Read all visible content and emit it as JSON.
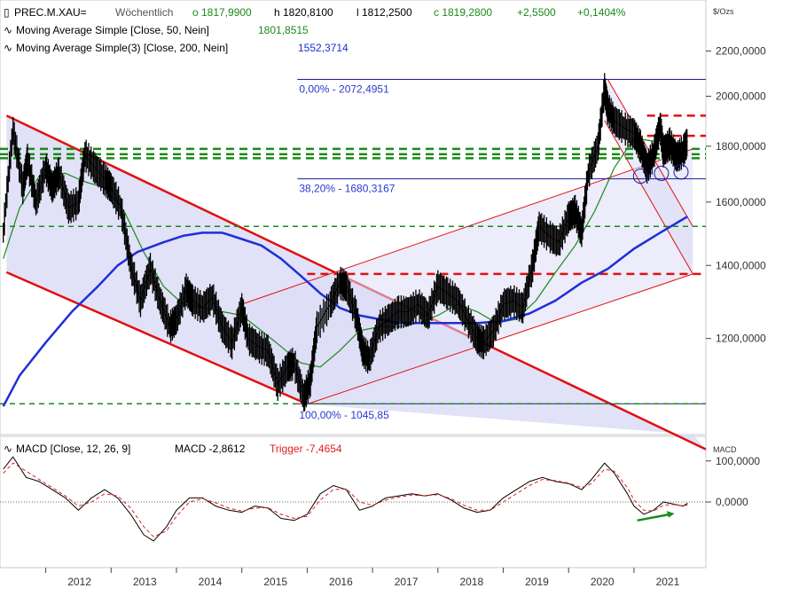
{
  "header": {
    "instrument": "PREC.M.XAU=",
    "period": "Wöchentlich",
    "open": "o 1817,9900",
    "high": "h 1820,8100",
    "low": "l 1812,2500",
    "close": "c 1819,2800",
    "change": "+2,5500",
    "change_pct": "+0,1404%",
    "ma1_label": "Moving Average Simple  [Close, 50, Nein]",
    "ma1_value": "1801,8515",
    "ma2_label": "Moving Average Simple(3)  [Close, 200, Nein]",
    "ma2_value": "1552,3714",
    "unit": "$/Ozs"
  },
  "macd_header": {
    "label": "MACD  [Close, 12, 26, 9]",
    "value_text": "MACD -2,8612",
    "trigger_text": "Trigger -7,4654",
    "unit": "MACD"
  },
  "colors": {
    "price": "#000000",
    "ma50": "#1a8a1a",
    "ma200": "#1f2fd6",
    "channel": "#e01010",
    "channel_fill": "#dcdcf6",
    "fib": "#1a1a9a",
    "support": "#1a8a1a",
    "macd_trigger": "#e02020",
    "arrow": "#1a8a1a"
  },
  "chart_data": [
    {
      "type": "line",
      "title": "PREC.M.XAU= Wöchentlich",
      "y_axis": {
        "scale": "log",
        "ylim": [
          980,
          2450
        ],
        "ticks": [
          "2200,0000",
          "2000,0000",
          "1800,0000",
          "1600,0000",
          "1400,0000",
          "1200,0000"
        ],
        "tick_values": [
          2200,
          2000,
          1800,
          1600,
          1400,
          1200
        ],
        "unit": "$/Ozs"
      },
      "x_axis": {
        "xlim": [
          2011.3,
          2022.1
        ],
        "ticks": [
          "2012",
          "2013",
          "2014",
          "2015",
          "2016",
          "2017",
          "2018",
          "2019",
          "2020",
          "2021"
        ],
        "tick_values": [
          2012,
          2013,
          2014,
          2015,
          2016,
          2017,
          2018,
          2019,
          2020,
          2021
        ]
      },
      "series": [
        {
          "name": "PREC.M.XAU=",
          "style": "price",
          "x": [
            2011.35,
            2011.5,
            2011.65,
            2011.72,
            2011.85,
            2012.0,
            2012.1,
            2012.2,
            2012.35,
            2012.5,
            2012.6,
            2012.75,
            2012.9,
            2013.0,
            2013.15,
            2013.3,
            2013.45,
            2013.6,
            2013.75,
            2013.9,
            2014.0,
            2014.15,
            2014.25,
            2014.4,
            2014.55,
            2014.7,
            2014.85,
            2015.0,
            2015.1,
            2015.25,
            2015.4,
            2015.55,
            2015.7,
            2015.8,
            2015.95,
            2016.05,
            2016.15,
            2016.35,
            2016.5,
            2016.6,
            2016.75,
            2016.85,
            2016.95,
            2017.1,
            2017.25,
            2017.4,
            2017.55,
            2017.7,
            2017.85,
            2018.0,
            2018.15,
            2018.3,
            2018.45,
            2018.6,
            2018.7,
            2018.85,
            2019.0,
            2019.15,
            2019.3,
            2019.45,
            2019.55,
            2019.7,
            2019.85,
            2020.0,
            2020.1,
            2020.2,
            2020.3,
            2020.45,
            2020.55,
            2020.6,
            2020.7,
            2020.85,
            2021.0,
            2021.1,
            2021.2,
            2021.3,
            2021.4,
            2021.45,
            2021.55,
            2021.65,
            2021.75,
            2021.82
          ],
          "values": [
            1500,
            1860,
            1650,
            1750,
            1600,
            1720,
            1650,
            1700,
            1580,
            1600,
            1770,
            1720,
            1680,
            1650,
            1580,
            1400,
            1300,
            1390,
            1300,
            1230,
            1250,
            1330,
            1300,
            1280,
            1310,
            1230,
            1190,
            1280,
            1200,
            1180,
            1170,
            1090,
            1130,
            1140,
            1060,
            1100,
            1230,
            1290,
            1350,
            1340,
            1260,
            1170,
            1150,
            1230,
            1250,
            1270,
            1270,
            1290,
            1260,
            1340,
            1320,
            1300,
            1250,
            1200,
            1190,
            1220,
            1290,
            1300,
            1280,
            1400,
            1520,
            1490,
            1470,
            1550,
            1570,
            1500,
            1700,
            1800,
            2030,
            1950,
            1900,
            1870,
            1850,
            1800,
            1720,
            1770,
            1880,
            1780,
            1810,
            1760,
            1780,
            1819
          ]
        },
        {
          "name": "Moving Average Simple [Close, 50, Nein]",
          "style": "ma50",
          "x": [
            2011.35,
            2011.6,
            2011.9,
            2012.3,
            2012.6,
            2012.9,
            2013.2,
            2013.5,
            2013.8,
            2014.1,
            2014.4,
            2014.7,
            2015.0,
            2015.3,
            2015.6,
            2015.9,
            2016.2,
            2016.5,
            2016.8,
            2017.1,
            2017.4,
            2017.7,
            2018.0,
            2018.3,
            2018.6,
            2018.9,
            2019.2,
            2019.5,
            2019.8,
            2020.1,
            2020.4,
            2020.7,
            2021.0,
            2021.3,
            2021.6,
            2021.82
          ],
          "values": [
            1420,
            1580,
            1690,
            1700,
            1670,
            1650,
            1570,
            1440,
            1340,
            1290,
            1280,
            1270,
            1260,
            1220,
            1180,
            1140,
            1130,
            1170,
            1220,
            1230,
            1230,
            1240,
            1260,
            1290,
            1270,
            1240,
            1250,
            1300,
            1380,
            1460,
            1570,
            1720,
            1830,
            1820,
            1790,
            1802
          ]
        },
        {
          "name": "Moving Average Simple(3) [Close, 200, Nein]",
          "style": "ma200",
          "x": [
            2011.35,
            2011.6,
            2012.0,
            2012.4,
            2012.8,
            2013.1,
            2013.4,
            2013.8,
            2014.1,
            2014.4,
            2014.7,
            2015.0,
            2015.3,
            2015.6,
            2015.9,
            2016.2,
            2016.5,
            2016.8,
            2017.1,
            2017.4,
            2017.8,
            2018.2,
            2018.6,
            2019.0,
            2019.4,
            2019.8,
            2020.2,
            2020.6,
            2021.0,
            2021.4,
            2021.82
          ],
          "values": [
            1040,
            1110,
            1190,
            1270,
            1340,
            1400,
            1440,
            1470,
            1490,
            1500,
            1500,
            1480,
            1460,
            1420,
            1370,
            1320,
            1280,
            1260,
            1250,
            1240,
            1240,
            1240,
            1240,
            1245,
            1265,
            1300,
            1350,
            1390,
            1450,
            1500,
            1552
          ]
        }
      ],
      "fibonacci": [
        {
          "label": "0,00% - 2072,4951",
          "value": 2072.4951
        },
        {
          "label": "38,20% - 1680,3167",
          "value": 1680.3167
        },
        {
          "label": "100,00% - 1045,85",
          "value": 1045.85
        }
      ],
      "support_levels": [
        1790,
        1770,
        1755,
        1520,
        1045.85
      ],
      "resistance_levels": [
        1920,
        1840,
        1375
      ],
      "channels": [
        {
          "name": "downtrend channel",
          "upper": [
            [
              2011.4,
              1920
            ],
            [
              2022.1,
              950
            ]
          ],
          "lower": [
            [
              2011.4,
              1380
            ],
            [
              2016.0,
              1045
            ]
          ]
        },
        {
          "name": "uptrend channel",
          "upper": [
            [
              2015.0,
              1290
            ],
            [
              2021.9,
              1790
            ]
          ],
          "lower": [
            [
              2016.0,
              1045
            ],
            [
              2021.9,
              1375
            ]
          ]
        },
        {
          "name": "short-term downtrend",
          "upper": [
            [
              2020.6,
              2072
            ],
            [
              2021.9,
              1520
            ]
          ],
          "lower": [
            [
              2020.55,
              1900
            ],
            [
              2021.9,
              1375
            ]
          ]
        }
      ]
    },
    {
      "type": "line",
      "title": "MACD [Close, 12, 26, 9]",
      "y_axis": {
        "ylim": [
          -160,
          160
        ],
        "ticks": [
          "100,0000",
          "0,0000"
        ],
        "tick_values": [
          100,
          0
        ],
        "unit": "MACD"
      },
      "series": [
        {
          "name": "MACD",
          "style": "macd",
          "x": [
            2011.35,
            2011.5,
            2011.7,
            2011.9,
            2012.1,
            2012.3,
            2012.5,
            2012.7,
            2012.9,
            2013.1,
            2013.3,
            2013.5,
            2013.65,
            2013.85,
            2014.0,
            2014.2,
            2014.4,
            2014.6,
            2014.8,
            2015.0,
            2015.2,
            2015.4,
            2015.6,
            2015.8,
            2016.0,
            2016.2,
            2016.4,
            2016.6,
            2016.8,
            2017.0,
            2017.2,
            2017.4,
            2017.6,
            2017.8,
            2018.0,
            2018.2,
            2018.4,
            2018.6,
            2018.8,
            2019.0,
            2019.2,
            2019.4,
            2019.6,
            2019.8,
            2020.0,
            2020.2,
            2020.35,
            2020.55,
            2020.7,
            2020.9,
            2021.0,
            2021.15,
            2021.3,
            2021.45,
            2021.6,
            2021.75,
            2021.82
          ],
          "values": [
            80,
            110,
            60,
            50,
            30,
            10,
            -20,
            10,
            30,
            10,
            -30,
            -80,
            -95,
            -60,
            -20,
            10,
            10,
            -10,
            -20,
            -25,
            -10,
            -15,
            -40,
            -45,
            -30,
            20,
            40,
            30,
            -20,
            -10,
            10,
            15,
            20,
            15,
            20,
            5,
            -15,
            -25,
            -20,
            10,
            30,
            50,
            60,
            50,
            45,
            30,
            55,
            95,
            70,
            20,
            -10,
            -30,
            -20,
            0,
            -5,
            -10,
            -3
          ]
        },
        {
          "name": "Trigger",
          "style": "trigger",
          "x": [
            2011.35,
            2011.5,
            2011.7,
            2011.9,
            2012.1,
            2012.3,
            2012.5,
            2012.7,
            2012.9,
            2013.1,
            2013.3,
            2013.5,
            2013.65,
            2013.85,
            2014.0,
            2014.2,
            2014.4,
            2014.6,
            2014.8,
            2015.0,
            2015.2,
            2015.4,
            2015.6,
            2015.8,
            2016.0,
            2016.2,
            2016.4,
            2016.6,
            2016.8,
            2017.0,
            2017.2,
            2017.4,
            2017.6,
            2017.8,
            2018.0,
            2018.2,
            2018.4,
            2018.6,
            2018.8,
            2019.0,
            2019.2,
            2019.4,
            2019.6,
            2019.8,
            2020.0,
            2020.2,
            2020.35,
            2020.55,
            2020.7,
            2020.9,
            2021.0,
            2021.15,
            2021.3,
            2021.45,
            2021.6,
            2021.75,
            2021.82
          ],
          "values": [
            70,
            95,
            75,
            55,
            35,
            15,
            -10,
            0,
            20,
            15,
            -15,
            -60,
            -85,
            -70,
            -35,
            0,
            8,
            -2,
            -15,
            -22,
            -15,
            -14,
            -30,
            -40,
            -35,
            5,
            30,
            32,
            0,
            -8,
            5,
            12,
            17,
            15,
            18,
            8,
            -8,
            -20,
            -20,
            0,
            20,
            40,
            55,
            52,
            46,
            35,
            45,
            80,
            75,
            35,
            5,
            -20,
            -22,
            -8,
            -6,
            -9,
            -7
          ]
        }
      ]
    }
  ]
}
